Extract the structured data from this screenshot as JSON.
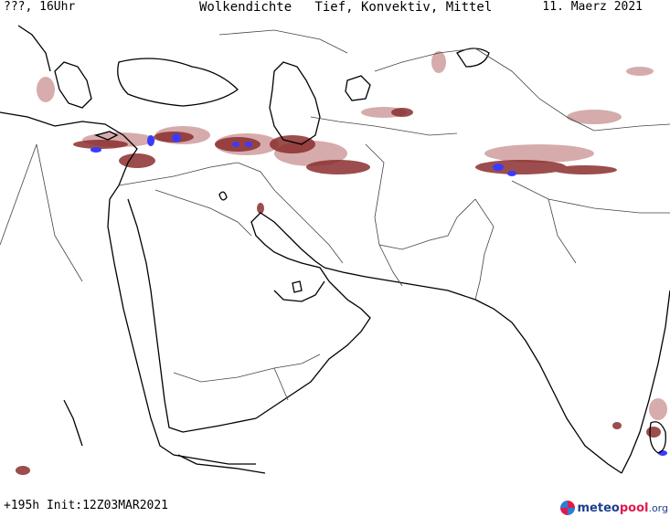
{
  "header": {
    "left": "???, 16Uhr",
    "title": "Wolkendichte   Tief, Konvektiv, Mittel",
    "right": "11. Maerz 2021"
  },
  "footer": {
    "run_info": "+195h Init:12Z03MAR2021"
  },
  "logo": {
    "part1": "meteo",
    "part2": "pool",
    "part3": ".org"
  },
  "colors": {
    "cloud_light": "#d9b3b3",
    "cloud_mid": "#b87070",
    "cloud_dark": "#8b2e2e",
    "convective": "#3b3bff",
    "coast": "#000000",
    "border": "#444444"
  }
}
